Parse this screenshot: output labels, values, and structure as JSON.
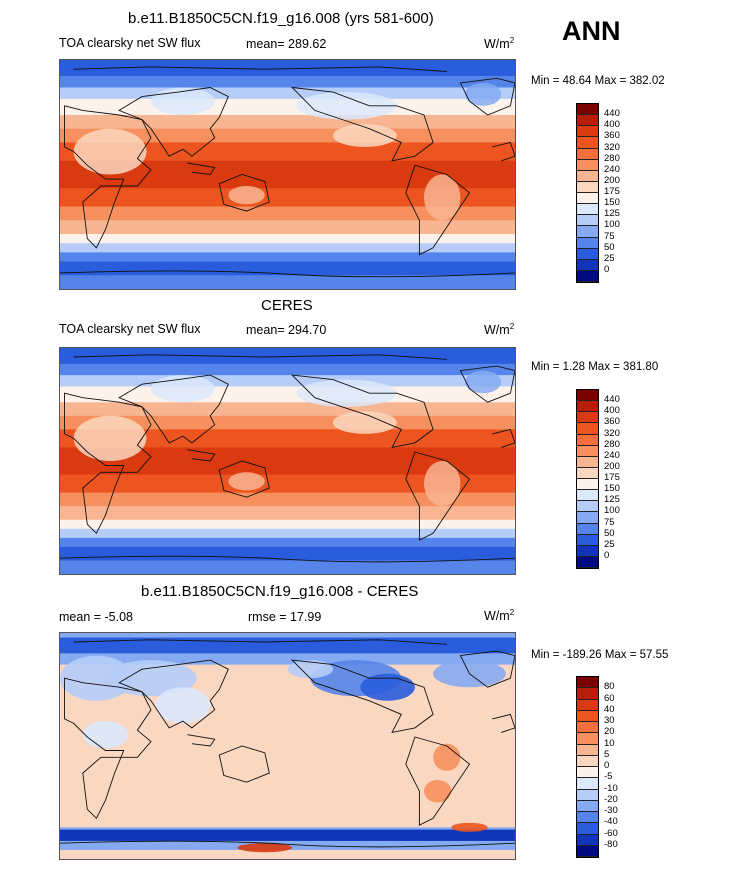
{
  "season": "ANN",
  "panels": [
    {
      "title": "b.e11.B1850C5CN.f19_g16.008 (yrs 581-600)",
      "left_label": "TOA clearsky net SW flux",
      "stat_label": "mean= 289.62",
      "units": "W/m",
      "units_sup": "2",
      "minmax": "Min =  48.64 Max = 382.02"
    },
    {
      "title": "CERES",
      "left_label": "TOA clearsky net SW flux",
      "stat_label": "mean= 294.70",
      "units": "W/m",
      "units_sup": "2",
      "minmax": "Min =   1.28 Max = 381.80"
    },
    {
      "title": "b.e11.B1850C5CN.f19_g16.008 - CERES",
      "left_label": "mean =  -5.08",
      "stat_label": "rmse =  17.99",
      "units": "W/m",
      "units_sup": "2",
      "minmax": "Min = -189.26 Max =  57.55"
    }
  ],
  "chart_data": [
    {
      "type": "heatmap",
      "title": "b.e11.B1850C5CN.f19_g16.008 (yrs 581-600)",
      "variable": "TOA clearsky net SW flux",
      "units": "W/m2",
      "mean": 289.62,
      "min": 48.64,
      "max": 382.02,
      "colorbar_levels": [
        440,
        400,
        360,
        320,
        280,
        240,
        200,
        175,
        150,
        125,
        100,
        75,
        50,
        25,
        0
      ],
      "colorbar_colors": [
        "#7a0000",
        "#b81d0a",
        "#d93a10",
        "#ec5520",
        "#f3703c",
        "#f6915f",
        "#f8b592",
        "#fad7c0",
        "#fdf3ea",
        "#dce8fb",
        "#b5cdf8",
        "#86aaf2",
        "#5585ea",
        "#2a5ddc",
        "#1035b8",
        "#000a80"
      ]
    },
    {
      "type": "heatmap",
      "title": "CERES",
      "variable": "TOA clearsky net SW flux",
      "units": "W/m2",
      "mean": 294.7,
      "min": 1.28,
      "max": 381.8,
      "colorbar_levels": [
        440,
        400,
        360,
        320,
        280,
        240,
        200,
        175,
        150,
        125,
        100,
        75,
        50,
        25,
        0
      ],
      "colorbar_colors": [
        "#7a0000",
        "#b81d0a",
        "#d93a10",
        "#ec5520",
        "#f3703c",
        "#f6915f",
        "#f8b592",
        "#fad7c0",
        "#fdf3ea",
        "#dce8fb",
        "#b5cdf8",
        "#86aaf2",
        "#5585ea",
        "#2a5ddc",
        "#1035b8",
        "#000a80"
      ]
    },
    {
      "type": "heatmap",
      "title": "b.e11.B1850C5CN.f19_g16.008 - CERES",
      "units": "W/m2",
      "mean": -5.08,
      "rmse": 17.99,
      "min": -189.26,
      "max": 57.55,
      "colorbar_levels": [
        80,
        60,
        40,
        30,
        20,
        10,
        5,
        0,
        -5,
        -10,
        -20,
        -30,
        -40,
        -60,
        -80
      ],
      "colorbar_colors": [
        "#7a0000",
        "#b81d0a",
        "#d93a10",
        "#ec5520",
        "#f3703c",
        "#f6915f",
        "#f8b592",
        "#fad7c0",
        "#fdf3ea",
        "#dce8fb",
        "#b5cdf8",
        "#86aaf2",
        "#5585ea",
        "#2a5ddc",
        "#1035b8",
        "#000a80"
      ]
    }
  ]
}
